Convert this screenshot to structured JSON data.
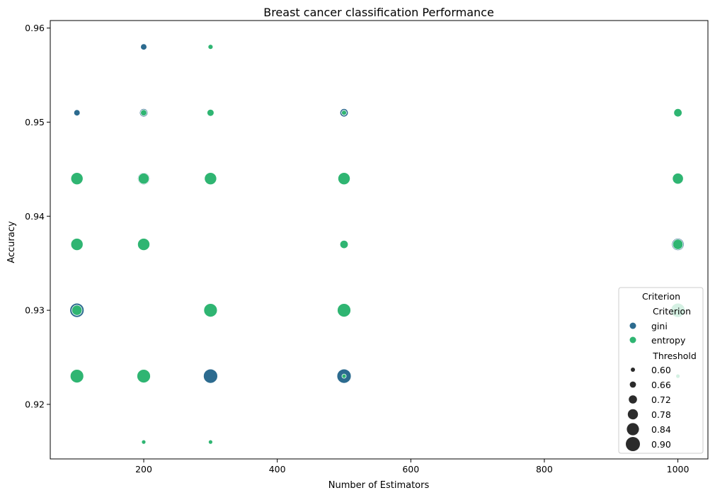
{
  "chart_data": {
    "type": "scatter",
    "title": "Breast cancer classification Performance",
    "xlabel": "Number of Estimators",
    "ylabel": "Accuracy",
    "xlim": [
      60,
      1045
    ],
    "ylim": [
      0.9142,
      0.9608
    ],
    "x_ticks": [
      200,
      400,
      600,
      800,
      1000
    ],
    "x_tick_labels": [
      "200",
      "400",
      "600",
      "800",
      "1000"
    ],
    "y_ticks": [
      0.92,
      0.93,
      0.94,
      0.95,
      0.96
    ],
    "y_tick_labels": [
      "0.92",
      "0.93",
      "0.94",
      "0.95",
      "0.96"
    ],
    "grid": false,
    "legend": {
      "placement": "lower-right",
      "title": "Criterion",
      "hue_title": "Criterion",
      "hue_entries": [
        {
          "label": "gini",
          "color": "#2c6b8f"
        },
        {
          "label": "entropy",
          "color": "#2fb572"
        }
      ],
      "size_title": "Threshold",
      "size_entries": [
        {
          "label": "0.60",
          "value": 0.6
        },
        {
          "label": "0.66",
          "value": 0.66
        },
        {
          "label": "0.72",
          "value": 0.72
        },
        {
          "label": "0.78",
          "value": 0.78
        },
        {
          "label": "0.84",
          "value": 0.84
        },
        {
          "label": "0.90",
          "value": 0.9
        }
      ]
    },
    "colors": {
      "gini": "#2c6b8f",
      "entropy": "#2fb572"
    },
    "size_variable": "Threshold",
    "series": [
      {
        "name": "gini",
        "points": [
          {
            "x": 100,
            "y": 0.951,
            "threshold": 0.66
          },
          {
            "x": 100,
            "y": 0.93,
            "threshold": 0.9
          },
          {
            "x": 200,
            "y": 0.958,
            "threshold": 0.66
          },
          {
            "x": 200,
            "y": 0.951,
            "threshold": 0.72
          },
          {
            "x": 200,
            "y": 0.944,
            "threshold": 0.84
          },
          {
            "x": 300,
            "y": 0.923,
            "threshold": 0.9
          },
          {
            "x": 500,
            "y": 0.951,
            "threshold": 0.72
          },
          {
            "x": 500,
            "y": 0.923,
            "threshold": 0.9
          },
          {
            "x": 1000,
            "y": 0.944,
            "threshold": 0.78
          },
          {
            "x": 1000,
            "y": 0.937,
            "threshold": 0.84
          }
        ]
      },
      {
        "name": "entropy",
        "points": [
          {
            "x": 100,
            "y": 0.944,
            "threshold": 0.84
          },
          {
            "x": 100,
            "y": 0.937,
            "threshold": 0.84
          },
          {
            "x": 100,
            "y": 0.93,
            "threshold": 0.78
          },
          {
            "x": 100,
            "y": 0.923,
            "threshold": 0.88
          },
          {
            "x": 200,
            "y": 0.951,
            "threshold": 0.66
          },
          {
            "x": 200,
            "y": 0.944,
            "threshold": 0.8
          },
          {
            "x": 200,
            "y": 0.937,
            "threshold": 0.84
          },
          {
            "x": 200,
            "y": 0.923,
            "threshold": 0.88
          },
          {
            "x": 200,
            "y": 0.916,
            "threshold": 0.6
          },
          {
            "x": 300,
            "y": 0.958,
            "threshold": 0.62
          },
          {
            "x": 300,
            "y": 0.951,
            "threshold": 0.68
          },
          {
            "x": 300,
            "y": 0.944,
            "threshold": 0.84
          },
          {
            "x": 300,
            "y": 0.93,
            "threshold": 0.88
          },
          {
            "x": 300,
            "y": 0.916,
            "threshold": 0.6
          },
          {
            "x": 500,
            "y": 0.951,
            "threshold": 0.62
          },
          {
            "x": 500,
            "y": 0.944,
            "threshold": 0.84
          },
          {
            "x": 500,
            "y": 0.937,
            "threshold": 0.72
          },
          {
            "x": 500,
            "y": 0.93,
            "threshold": 0.88
          },
          {
            "x": 500,
            "y": 0.923,
            "threshold": 0.6
          },
          {
            "x": 1000,
            "y": 0.951,
            "threshold": 0.72
          },
          {
            "x": 1000,
            "y": 0.944,
            "threshold": 0.8
          },
          {
            "x": 1000,
            "y": 0.937,
            "threshold": 0.78
          },
          {
            "x": 1000,
            "y": 0.93,
            "threshold": 0.9
          },
          {
            "x": 1000,
            "y": 0.923,
            "threshold": 0.6
          }
        ]
      }
    ]
  }
}
